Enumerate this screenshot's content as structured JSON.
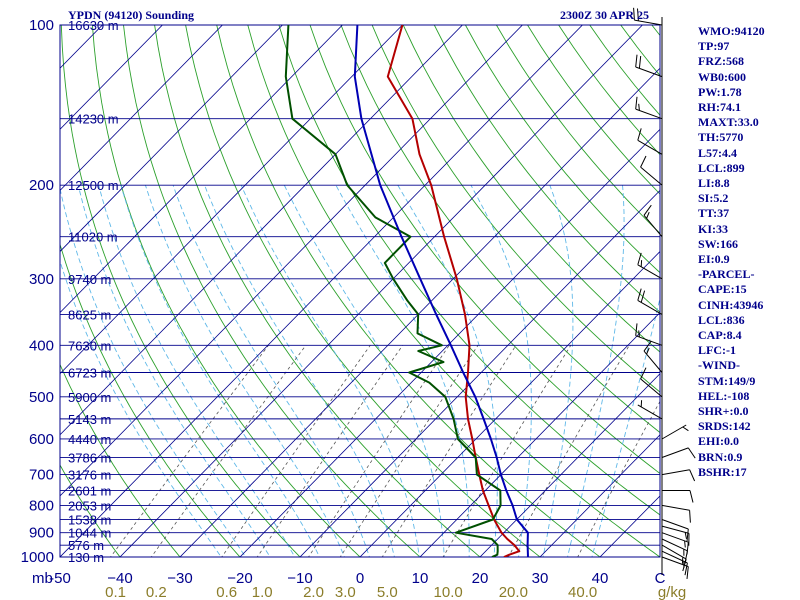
{
  "header": {
    "title": "YPDN (94120) Sounding",
    "timestamp": "2300Z 30 APR 25"
  },
  "indices": [
    "WMO:94120",
    "TP:97",
    "FRZ:568",
    "WB0:600",
    "PW:1.78",
    "RH:74.1",
    "MAXT:33.0",
    "TH:5770",
    "L57:4.4",
    "LCL:899",
    "LI:8.8",
    "SI:5.2",
    "TT:37",
    "KI:33",
    "SW:166",
    "EI:0.9",
    "-PARCEL-",
    "CAPE:15",
    "CINH:43946",
    "LCL:836",
    "CAP:8.4",
    "LFC:-1",
    "-WIND-",
    "STM:149/9",
    "HEL:-108",
    "SHR+:0.0",
    "SRDS:142",
    "EHI:0.0",
    "BRN:0.9",
    "BSHR:17"
  ],
  "colors": {
    "axis": "#00008b",
    "isobar": "#00008b",
    "isotherm": "#00008b",
    "dry_adiabat": "#2ca02c",
    "moist_adiabat": "#5fb8e8",
    "mixing_ratio": "#555555",
    "temperature": "#b40000",
    "dewpoint": "#005000",
    "parcel": "#0000b4",
    "wind": "#000000"
  },
  "chart_data": {
    "type": "line",
    "diagram": "skew-T log-p",
    "title": "YPDN (94120) Sounding",
    "xlabel": "",
    "ylabel": "mb",
    "x_unit": "°C",
    "xlim": [
      -50,
      50
    ],
    "ylim": [
      1000,
      100
    ],
    "y_scale": "log",
    "pressure_ticks": [
      100,
      200,
      300,
      400,
      500,
      600,
      700,
      800,
      900,
      1000
    ],
    "temperature_ticks": [
      -50,
      -40,
      -30,
      -20,
      -10,
      0,
      10,
      20,
      30,
      40
    ],
    "temperature_tick_labels": [
      "-50",
      "−40",
      "−30",
      "−20",
      "−10",
      "0",
      "10",
      "20",
      "30",
      "40",
      "C"
    ],
    "height_levels": [
      {
        "p": 100,
        "label": "16630 m"
      },
      {
        "p": 150,
        "label": "14230 m"
      },
      {
        "p": 200,
        "label": "12500 m"
      },
      {
        "p": 250,
        "label": "11020 m"
      },
      {
        "p": 300,
        "label": "9740 m"
      },
      {
        "p": 350,
        "label": "8625 m"
      },
      {
        "p": 400,
        "label": "7630 m"
      },
      {
        "p": 450,
        "label": "6723 m"
      },
      {
        "p": 500,
        "label": "5900 m"
      },
      {
        "p": 550,
        "label": "5143 m"
      },
      {
        "p": 600,
        "label": "4440 m"
      },
      {
        "p": 650,
        "label": "3786 m"
      },
      {
        "p": 700,
        "label": "3176 m"
      },
      {
        "p": 750,
        "label": "2601 m"
      },
      {
        "p": 800,
        "label": "2053 m"
      },
      {
        "p": 850,
        "label": "1538 m"
      },
      {
        "p": 900,
        "label": "1044 m"
      },
      {
        "p": 950,
        "label": "576 m"
      },
      {
        "p": 1000,
        "label": "130 m"
      }
    ],
    "mixing_ratio_labels": [
      "0.1",
      "0.2",
      "0.6",
      "1.0",
      "2.0",
      "3.0",
      "5.0",
      "10.0",
      "20.0",
      "40.0",
      "g/kg"
    ],
    "mixing_ratio_values": [
      0.1,
      0.2,
      0.6,
      1.0,
      2.0,
      3.0,
      5.0,
      10.0,
      20.0,
      40.0
    ],
    "series": [
      {
        "name": "temperature",
        "p": [
          1000,
          990,
          975,
          950,
          925,
          900,
          850,
          800,
          750,
          700,
          650,
          600,
          550,
          500,
          450,
          400,
          350,
          300,
          250,
          200,
          175,
          150,
          125,
          100
        ],
        "t": [
          24.0,
          24.5,
          25.6,
          23.8,
          21.6,
          19.6,
          16.2,
          13.0,
          9.6,
          6.4,
          3.0,
          -0.6,
          -4.6,
          -8.6,
          -12.2,
          -16.4,
          -22.2,
          -29.4,
          -38.4,
          -49.0,
          -56.0,
          -63.0,
          -74.0,
          -80.0
        ]
      },
      {
        "name": "dewpoint",
        "p": [
          1000,
          990,
          975,
          950,
          925,
          900,
          850,
          800,
          750,
          700,
          650,
          600,
          550,
          500,
          470,
          450,
          430,
          410,
          400,
          380,
          350,
          330,
          300,
          280,
          250,
          230,
          200,
          175,
          150,
          125,
          100
        ],
        "t": [
          22.0,
          22.5,
          22.0,
          21.0,
          19.0,
          12.0,
          16.0,
          15.0,
          12.5,
          6.0,
          3.0,
          -3.0,
          -7.0,
          -12.0,
          -17.0,
          -22.0,
          -18.0,
          -24.0,
          -21.0,
          -27.0,
          -30.0,
          -34.0,
          -40.0,
          -44.0,
          -44.0,
          -53.0,
          -63.0,
          -70.0,
          -83.0,
          -91.0,
          -99.0
        ]
      },
      {
        "name": "parcel",
        "p": [
          1000,
          950,
          900,
          850,
          800,
          750,
          700,
          650,
          600,
          550,
          500,
          450,
          400,
          350,
          300,
          250,
          200,
          150,
          125,
          100
        ],
        "t": [
          28.0,
          26.0,
          24.0,
          20.0,
          17.0,
          13.5,
          10.0,
          6.5,
          2.5,
          -2.0,
          -7.0,
          -13.0,
          -19.5,
          -27.0,
          -35.5,
          -45.5,
          -57.5,
          -71.5,
          -79.5,
          -87.5
        ]
      }
    ],
    "wind_barbs": [
      {
        "p": 1000,
        "dir": 110,
        "spd": 10
      },
      {
        "p": 975,
        "dir": 115,
        "spd": 15
      },
      {
        "p": 950,
        "dir": 120,
        "spd": 15
      },
      {
        "p": 925,
        "dir": 115,
        "spd": 15
      },
      {
        "p": 900,
        "dir": 110,
        "spd": 15
      },
      {
        "p": 875,
        "dir": 105,
        "spd": 15
      },
      {
        "p": 850,
        "dir": 110,
        "spd": 10
      },
      {
        "p": 800,
        "dir": 100,
        "spd": 10
      },
      {
        "p": 750,
        "dir": 90,
        "spd": 10
      },
      {
        "p": 700,
        "dir": 80,
        "spd": 10
      },
      {
        "p": 650,
        "dir": 70,
        "spd": 10
      },
      {
        "p": 600,
        "dir": 60,
        "spd": 5
      },
      {
        "p": 550,
        "dir": 300,
        "spd": 5
      },
      {
        "p": 500,
        "dir": 310,
        "spd": 10
      },
      {
        "p": 450,
        "dir": 320,
        "spd": 15
      },
      {
        "p": 400,
        "dir": 290,
        "spd": 15
      },
      {
        "p": 350,
        "dir": 300,
        "spd": 20
      },
      {
        "p": 300,
        "dir": 300,
        "spd": 15
      },
      {
        "p": 250,
        "dir": 320,
        "spd": 15
      },
      {
        "p": 200,
        "dir": 310,
        "spd": 10
      },
      {
        "p": 175,
        "dir": 300,
        "spd": 10
      },
      {
        "p": 150,
        "dir": 290,
        "spd": 15
      },
      {
        "p": 125,
        "dir": 290,
        "spd": 20
      },
      {
        "p": 100,
        "dir": 280,
        "spd": 20
      }
    ]
  }
}
